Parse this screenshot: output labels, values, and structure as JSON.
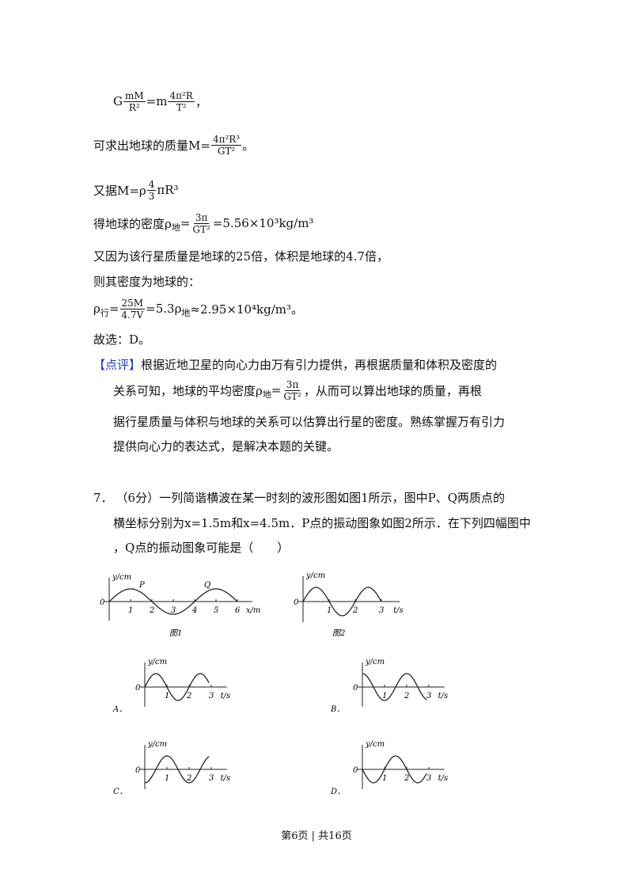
{
  "solution": {
    "lines": [
      [
        "G",
        {
          "num": "mM",
          "den": "R²"
        },
        "=m",
        {
          "num": "4π²R",
          "den": "T²"
        },
        "，"
      ],
      [
        "可求出地球的质量M=",
        {
          "num": "4π²R³",
          "den": "GT²"
        },
        "。"
      ],
      [
        "又据M=ρ",
        {
          "num": "4",
          "den": "3"
        },
        "πR³"
      ],
      [
        "得地球的密度ρ",
        {
          "sub": "地"
        },
        "=",
        {
          "num": "3π",
          "den": "GT²"
        },
        "=5.56×10³kg/m³"
      ],
      [
        "又因为该行星质量是地球的25倍，体积是地球的4.7倍，"
      ],
      [
        "则其密度为地球的："
      ],
      [
        "ρ",
        {
          "sub": "行"
        },
        "=",
        {
          "num": "25M",
          "den": "4.7V"
        },
        "=5.3ρ",
        {
          "sub": "地"
        },
        "≈2.95×10⁴kg/m³。"
      ],
      [
        "故选：D。"
      ]
    ]
  },
  "review": {
    "tag": "【点评】",
    "lines": [
      [
        "根据近地卫星的向心力由万有引力提供，再根据质量和体积及密度的"
      ],
      [
        "关系可知，地球的平均密度ρ",
        {
          "sub": "地"
        },
        "=",
        {
          "num": "3π",
          "den": "GT²"
        },
        "，从而可以算出地球的质量，再根"
      ],
      [
        "据行星质量与体积与地球的关系可以估算出行星的密度。熟练掌握万有引力"
      ],
      [
        "提供向心力的表达式，是解决本题的关键。"
      ]
    ]
  },
  "question": {
    "number": "7．",
    "lines": [
      [
        "（6分）一列简谐横波在某一时刻的波形图如图1所示，图中P、Q两质点的"
      ],
      [
        "横坐标分别为x=1.5m和x=4.5m．P点的振动图象如图2所示．在下列四幅图中"
      ],
      [
        "，Q点的振动图象可能是（　　）"
      ]
    ]
  },
  "figures": [
    {
      "y_label": "y/cm",
      "origin": "0",
      "ticks": [
        "1",
        "2",
        "3",
        "4",
        "5",
        "6"
      ],
      "x_label": "x/m",
      "points": [
        "P",
        "Q"
      ],
      "caption": "图1"
    },
    {
      "y_label": "y/cm",
      "origin": "0",
      "ticks": [
        "1",
        "2",
        "3"
      ],
      "x_label": "t/s",
      "caption": "图2"
    }
  ],
  "options": [
    {
      "label": "A．",
      "y_label": "y/cm",
      "origin": "0",
      "ticks": [
        "1",
        "2",
        "3"
      ],
      "x_label": "t/s"
    },
    {
      "label": "B．",
      "y_label": "y/cm",
      "origin": "0",
      "ticks": [
        "1",
        "2",
        "3"
      ],
      "x_label": "t/s"
    },
    {
      "label": "C．",
      "y_label": "y/cm",
      "origin": "0",
      "ticks": [
        "1",
        "2",
        "3"
      ],
      "x_label": "t/s"
    },
    {
      "label": "D．",
      "y_label": "y/cm",
      "origin": "0",
      "ticks": [
        "1",
        "2",
        "3"
      ],
      "x_label": "t/s"
    }
  ],
  "footer": "第6页 | 共16页"
}
